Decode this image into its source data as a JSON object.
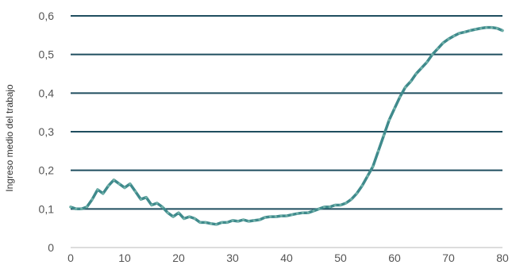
{
  "chart_data": {
    "type": "line",
    "title": "",
    "xlabel": "",
    "ylabel": "Ingreso medio del trabajo",
    "xlim": [
      0,
      80
    ],
    "ylim": [
      0,
      0.6
    ],
    "x_ticks": [
      0,
      10,
      20,
      30,
      40,
      50,
      60,
      70,
      80
    ],
    "y_ticks": [
      0,
      0.1,
      0.2,
      0.3,
      0.4,
      0.5,
      0.6
    ],
    "x_tick_labels": [
      "0",
      "10",
      "20",
      "30",
      "40",
      "50",
      "60",
      "70",
      "80"
    ],
    "y_tick_labels": [
      "0",
      "0,1",
      "0,2",
      "0,3",
      "0,4",
      "0,5",
      "0,6"
    ],
    "grid": "horizontal",
    "legend": "none",
    "line_color": "#3f8a8c",
    "grid_color": "#1f4e5f",
    "series": [
      {
        "x": [
          0,
          1,
          2,
          3,
          4,
          5,
          6,
          7,
          8,
          9,
          10,
          11,
          12,
          13,
          14,
          15,
          16,
          17,
          18,
          19,
          20,
          21,
          22,
          23,
          24,
          25,
          26,
          27,
          28,
          29,
          30,
          31,
          32,
          33,
          34,
          35,
          36,
          37,
          38,
          39,
          40,
          41,
          42,
          43,
          44,
          45,
          46,
          47,
          48,
          49,
          50,
          51,
          52,
          53,
          54,
          55,
          56,
          57,
          58,
          59,
          60,
          61,
          62,
          63,
          64,
          65,
          66,
          67,
          68,
          69,
          70,
          71,
          72,
          73,
          74,
          75,
          76,
          77,
          78,
          79,
          80
        ],
        "y": [
          0.105,
          0.1,
          0.1,
          0.105,
          0.125,
          0.15,
          0.14,
          0.16,
          0.175,
          0.165,
          0.155,
          0.165,
          0.145,
          0.125,
          0.13,
          0.11,
          0.115,
          0.105,
          0.09,
          0.08,
          0.09,
          0.075,
          0.08,
          0.075,
          0.065,
          0.065,
          0.062,
          0.06,
          0.065,
          0.065,
          0.07,
          0.068,
          0.072,
          0.068,
          0.07,
          0.072,
          0.078,
          0.08,
          0.08,
          0.082,
          0.082,
          0.085,
          0.088,
          0.09,
          0.09,
          0.095,
          0.1,
          0.105,
          0.105,
          0.11,
          0.11,
          0.115,
          0.125,
          0.14,
          0.16,
          0.185,
          0.21,
          0.25,
          0.29,
          0.33,
          0.36,
          0.39,
          0.415,
          0.43,
          0.45,
          0.465,
          0.48,
          0.5,
          0.515,
          0.53,
          0.54,
          0.548,
          0.555,
          0.558,
          0.562,
          0.565,
          0.568,
          0.57,
          0.57,
          0.568,
          0.562
        ]
      }
    ]
  }
}
